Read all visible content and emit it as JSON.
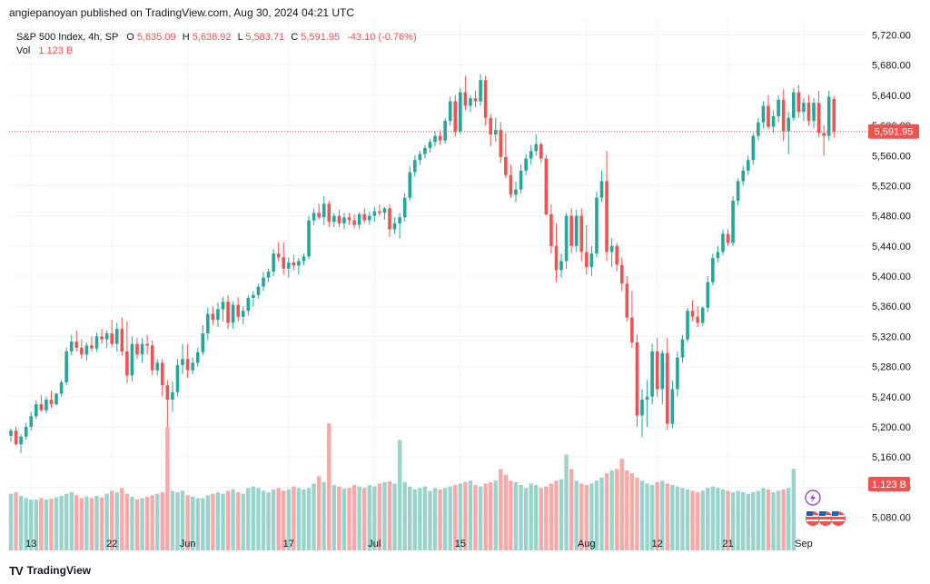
{
  "header": {
    "publisher_line": "angiepanoyan published on TradingView.com, Aug 30, 2024 04:21 UTC"
  },
  "legend": {
    "symbol": "S&P 500 Index, 4h, SP",
    "open_label": "O",
    "open": "5,635.09",
    "high_label": "H",
    "high": "5,638.92",
    "low_label": "L",
    "low": "5,583.71",
    "close_label": "C",
    "close": "5,591.95",
    "change": "-43.10 (-0.76%)",
    "vol_label": "Vol",
    "vol": "1.123 B"
  },
  "price_badge": "5,591.95",
  "volume_badge": "1.123 B",
  "footer": {
    "logo_text": "TradingView"
  },
  "colors": {
    "up": "#26a69a",
    "down": "#ef5350",
    "up_vol": "#9ad3cc",
    "down_vol": "#f7a9a7",
    "grid": "#f0f3fa",
    "last_price_line": "#ef5350"
  },
  "chart_data": {
    "type": "candlestick",
    "y_ticks": [
      5080,
      5120,
      5160,
      5200,
      5240,
      5280,
      5320,
      5360,
      5400,
      5440,
      5480,
      5520,
      5560,
      5600,
      5640,
      5680,
      5720
    ],
    "y_tick_labels": [
      "5,080.00",
      "5,120.00",
      "5,160.00",
      "5,200.00",
      "5,240.00",
      "5,280.00",
      "5,320.00",
      "5,360.00",
      "5,400.00",
      "5,440.00",
      "5,480.00",
      "5,520.00",
      "5,560.00",
      "5,600.00",
      "5,640.00",
      "5,680.00",
      "5,720.00"
    ],
    "x_ticks": [
      {
        "label": "13",
        "index": 4
      },
      {
        "label": "22",
        "index": 20
      },
      {
        "label": "Jun",
        "index": 35
      },
      {
        "label": "17",
        "index": 55
      },
      {
        "label": "Jul",
        "index": 72
      },
      {
        "label": "15",
        "index": 89
      },
      {
        "label": "Aug",
        "index": 114
      },
      {
        "label": "12",
        "index": 128
      },
      {
        "label": "21",
        "index": 142
      },
      {
        "label": "Sep",
        "index": 157
      }
    ],
    "last_price": 5591.95,
    "candles": [
      [
        5188,
        5198,
        5180,
        5195
      ],
      [
        5195,
        5200,
        5175,
        5177
      ],
      [
        5177,
        5190,
        5165,
        5187
      ],
      [
        5187,
        5205,
        5183,
        5200
      ],
      [
        5200,
        5220,
        5195,
        5214
      ],
      [
        5214,
        5235,
        5210,
        5230
      ],
      [
        5230,
        5242,
        5220,
        5222
      ],
      [
        5222,
        5240,
        5218,
        5236
      ],
      [
        5236,
        5248,
        5225,
        5230
      ],
      [
        5230,
        5245,
        5228,
        5244
      ],
      [
        5244,
        5262,
        5240,
        5259
      ],
      [
        5259,
        5305,
        5255,
        5300
      ],
      [
        5300,
        5322,
        5295,
        5313
      ],
      [
        5313,
        5328,
        5300,
        5305
      ],
      [
        5305,
        5316,
        5290,
        5296
      ],
      [
        5296,
        5312,
        5288,
        5308
      ],
      [
        5308,
        5320,
        5300,
        5304
      ],
      [
        5304,
        5325,
        5300,
        5320
      ],
      [
        5320,
        5330,
        5310,
        5316
      ],
      [
        5316,
        5328,
        5305,
        5324
      ],
      [
        5324,
        5342,
        5305,
        5310
      ],
      [
        5310,
        5338,
        5300,
        5330
      ],
      [
        5330,
        5345,
        5295,
        5300
      ],
      [
        5300,
        5340,
        5258,
        5268
      ],
      [
        5268,
        5320,
        5260,
        5310
      ],
      [
        5310,
        5318,
        5290,
        5296
      ],
      [
        5296,
        5318,
        5285,
        5310
      ],
      [
        5310,
        5322,
        5296,
        5308
      ],
      [
        5308,
        5315,
        5268,
        5275
      ],
      [
        5275,
        5290,
        5268,
        5285
      ],
      [
        5285,
        5290,
        5240,
        5255
      ],
      [
        5255,
        5262,
        5200,
        5236
      ],
      [
        5236,
        5260,
        5220,
        5246
      ],
      [
        5246,
        5290,
        5240,
        5282
      ],
      [
        5282,
        5310,
        5270,
        5290
      ],
      [
        5290,
        5310,
        5265,
        5275
      ],
      [
        5275,
        5292,
        5270,
        5285
      ],
      [
        5285,
        5305,
        5280,
        5299
      ],
      [
        5299,
        5335,
        5295,
        5324
      ],
      [
        5324,
        5358,
        5315,
        5350
      ],
      [
        5350,
        5360,
        5335,
        5342
      ],
      [
        5342,
        5365,
        5332,
        5356
      ],
      [
        5356,
        5372,
        5340,
        5366
      ],
      [
        5366,
        5375,
        5330,
        5338
      ],
      [
        5338,
        5366,
        5330,
        5362
      ],
      [
        5362,
        5372,
        5340,
        5346
      ],
      [
        5346,
        5360,
        5336,
        5354
      ],
      [
        5354,
        5375,
        5348,
        5371
      ],
      [
        5371,
        5380,
        5360,
        5375
      ],
      [
        5375,
        5390,
        5370,
        5386
      ],
      [
        5386,
        5405,
        5380,
        5398
      ],
      [
        5398,
        5410,
        5392,
        5406
      ],
      [
        5406,
        5436,
        5400,
        5430
      ],
      [
        5430,
        5445,
        5420,
        5425
      ],
      [
        5425,
        5445,
        5402,
        5410
      ],
      [
        5410,
        5425,
        5398,
        5418
      ],
      [
        5418,
        5428,
        5408,
        5414
      ],
      [
        5414,
        5424,
        5402,
        5420
      ],
      [
        5420,
        5430,
        5414,
        5426
      ],
      [
        5426,
        5480,
        5422,
        5474
      ],
      [
        5474,
        5490,
        5468,
        5484
      ],
      [
        5484,
        5496,
        5475,
        5478
      ],
      [
        5478,
        5506,
        5468,
        5496
      ],
      [
        5496,
        5500,
        5465,
        5472
      ],
      [
        5472,
        5484,
        5465,
        5480
      ],
      [
        5480,
        5488,
        5465,
        5470
      ],
      [
        5470,
        5484,
        5462,
        5478
      ],
      [
        5478,
        5484,
        5468,
        5474
      ],
      [
        5474,
        5482,
        5463,
        5468
      ],
      [
        5468,
        5485,
        5462,
        5482
      ],
      [
        5482,
        5490,
        5470,
        5474
      ],
      [
        5474,
        5486,
        5468,
        5480
      ],
      [
        5480,
        5492,
        5472,
        5486
      ],
      [
        5486,
        5495,
        5480,
        5484
      ],
      [
        5484,
        5492,
        5475,
        5490
      ],
      [
        5490,
        5495,
        5452,
        5462
      ],
      [
        5462,
        5478,
        5456,
        5470
      ],
      [
        5470,
        5484,
        5450,
        5478
      ],
      [
        5478,
        5510,
        5472,
        5504
      ],
      [
        5504,
        5546,
        5500,
        5538
      ],
      [
        5538,
        5560,
        5532,
        5554
      ],
      [
        5554,
        5566,
        5548,
        5562
      ],
      [
        5562,
        5574,
        5556,
        5570
      ],
      [
        5570,
        5582,
        5564,
        5578
      ],
      [
        5578,
        5592,
        5572,
        5586
      ],
      [
        5586,
        5594,
        5574,
        5580
      ],
      [
        5580,
        5610,
        5576,
        5606
      ],
      [
        5606,
        5638,
        5600,
        5632
      ],
      [
        5632,
        5640,
        5585,
        5592
      ],
      [
        5592,
        5650,
        5588,
        5644
      ],
      [
        5644,
        5666,
        5620,
        5626
      ],
      [
        5626,
        5640,
        5618,
        5636
      ],
      [
        5636,
        5646,
        5624,
        5632
      ],
      [
        5632,
        5668,
        5626,
        5660
      ],
      [
        5660,
        5666,
        5600,
        5610
      ],
      [
        5610,
        5615,
        5572,
        5588
      ],
      [
        5588,
        5610,
        5578,
        5594
      ],
      [
        5594,
        5604,
        5550,
        5558
      ],
      [
        5558,
        5590,
        5530,
        5534
      ],
      [
        5534,
        5548,
        5504,
        5508
      ],
      [
        5508,
        5525,
        5498,
        5515
      ],
      [
        5515,
        5548,
        5510,
        5540
      ],
      [
        5540,
        5562,
        5534,
        5556
      ],
      [
        5556,
        5574,
        5548,
        5566
      ],
      [
        5566,
        5588,
        5560,
        5575
      ],
      [
        5575,
        5578,
        5550,
        5556
      ],
      [
        5556,
        5560,
        5480,
        5482
      ],
      [
        5482,
        5495,
        5430,
        5440
      ],
      [
        5440,
        5470,
        5392,
        5408
      ],
      [
        5408,
        5430,
        5398,
        5420
      ],
      [
        5420,
        5484,
        5410,
        5480
      ],
      [
        5480,
        5490,
        5430,
        5440
      ],
      [
        5440,
        5488,
        5432,
        5480
      ],
      [
        5480,
        5490,
        5420,
        5432
      ],
      [
        5432,
        5468,
        5402,
        5412
      ],
      [
        5412,
        5440,
        5400,
        5430
      ],
      [
        5430,
        5512,
        5425,
        5504
      ],
      [
        5504,
        5540,
        5498,
        5526
      ],
      [
        5526,
        5566,
        5420,
        5432
      ],
      [
        5432,
        5450,
        5412,
        5440
      ],
      [
        5440,
        5444,
        5406,
        5415
      ],
      [
        5415,
        5425,
        5380,
        5390
      ],
      [
        5390,
        5400,
        5340,
        5345
      ],
      [
        5345,
        5380,
        5305,
        5312
      ],
      [
        5312,
        5322,
        5200,
        5215
      ],
      [
        5215,
        5250,
        5186,
        5236
      ],
      [
        5236,
        5262,
        5200,
        5240
      ],
      [
        5240,
        5310,
        5230,
        5300
      ],
      [
        5300,
        5318,
        5240,
        5250
      ],
      [
        5250,
        5302,
        5230,
        5298
      ],
      [
        5298,
        5318,
        5196,
        5204
      ],
      [
        5204,
        5262,
        5198,
        5250
      ],
      [
        5250,
        5300,
        5240,
        5292
      ],
      [
        5292,
        5322,
        5285,
        5316
      ],
      [
        5316,
        5358,
        5312,
        5354
      ],
      [
        5354,
        5368,
        5340,
        5346
      ],
      [
        5346,
        5360,
        5332,
        5338
      ],
      [
        5338,
        5360,
        5334,
        5358
      ],
      [
        5358,
        5400,
        5352,
        5392
      ],
      [
        5392,
        5430,
        5388,
        5424
      ],
      [
        5424,
        5440,
        5418,
        5432
      ],
      [
        5432,
        5462,
        5428,
        5456
      ],
      [
        5456,
        5462,
        5440,
        5444
      ],
      [
        5444,
        5506,
        5440,
        5500
      ],
      [
        5500,
        5530,
        5494,
        5526
      ],
      [
        5526,
        5546,
        5520,
        5540
      ],
      [
        5540,
        5560,
        5534,
        5554
      ],
      [
        5554,
        5590,
        5548,
        5586
      ],
      [
        5586,
        5610,
        5580,
        5604
      ],
      [
        5604,
        5632,
        5596,
        5626
      ],
      [
        5626,
        5640,
        5595,
        5598
      ],
      [
        5598,
        5620,
        5590,
        5612
      ],
      [
        5612,
        5640,
        5604,
        5634
      ],
      [
        5634,
        5648,
        5580,
        5592
      ],
      [
        5592,
        5618,
        5562,
        5610
      ],
      [
        5610,
        5650,
        5606,
        5644
      ],
      [
        5644,
        5654,
        5610,
        5618
      ],
      [
        5618,
        5636,
        5606,
        5630
      ],
      [
        5630,
        5640,
        5600,
        5606
      ],
      [
        5606,
        5636,
        5596,
        5630
      ],
      [
        5630,
        5646,
        5584,
        5590
      ],
      [
        5590,
        5600,
        5560,
        5586
      ],
      [
        5586,
        5646,
        5580,
        5638
      ],
      [
        5635.09,
        5638.92,
        5583.71,
        5591.95
      ]
    ],
    "volumes_billion": [
      0.78,
      0.8,
      0.75,
      0.72,
      0.7,
      0.7,
      0.72,
      0.7,
      0.71,
      0.73,
      0.75,
      0.78,
      0.8,
      0.76,
      0.72,
      0.74,
      0.72,
      0.75,
      0.73,
      0.78,
      0.82,
      0.8,
      0.86,
      0.78,
      0.74,
      0.7,
      0.72,
      0.74,
      0.76,
      0.78,
      0.8,
      1.7,
      0.82,
      0.8,
      0.82,
      0.76,
      0.74,
      0.72,
      0.72,
      0.76,
      0.78,
      0.8,
      0.78,
      0.82,
      0.84,
      0.8,
      0.78,
      0.86,
      0.88,
      0.86,
      0.82,
      0.8,
      0.84,
      0.86,
      0.82,
      0.84,
      0.88,
      0.86,
      0.84,
      0.86,
      0.92,
      1.02,
      0.94,
      1.75,
      0.9,
      0.88,
      0.85,
      0.86,
      0.9,
      0.88,
      0.86,
      0.9,
      0.88,
      0.92,
      0.94,
      0.95,
      0.92,
      1.52,
      0.94,
      0.88,
      0.84,
      0.86,
      0.88,
      0.82,
      0.86,
      0.84,
      0.86,
      0.88,
      0.9,
      0.92,
      0.94,
      0.96,
      0.9,
      0.88,
      0.92,
      0.94,
      0.96,
      1.12,
      1.04,
      0.96,
      0.94,
      0.9,
      0.86,
      0.92,
      0.9,
      0.86,
      0.88,
      0.92,
      0.96,
      0.98,
      1.32,
      1.12,
      0.96,
      0.92,
      0.9,
      0.92,
      0.96,
      1.0,
      1.06,
      1.1,
      1.12,
      1.26,
      1.1,
      1.06,
      1.0,
      0.96,
      0.92,
      0.9,
      0.94,
      0.96,
      0.92,
      0.9,
      0.88,
      0.86,
      0.84,
      0.82,
      0.8,
      0.82,
      0.86,
      0.88,
      0.86,
      0.84,
      0.82,
      0.8,
      0.82,
      0.8,
      0.78,
      0.8,
      0.82,
      0.86,
      0.84,
      0.8,
      0.82,
      0.84,
      0.86,
      1.123
    ]
  }
}
